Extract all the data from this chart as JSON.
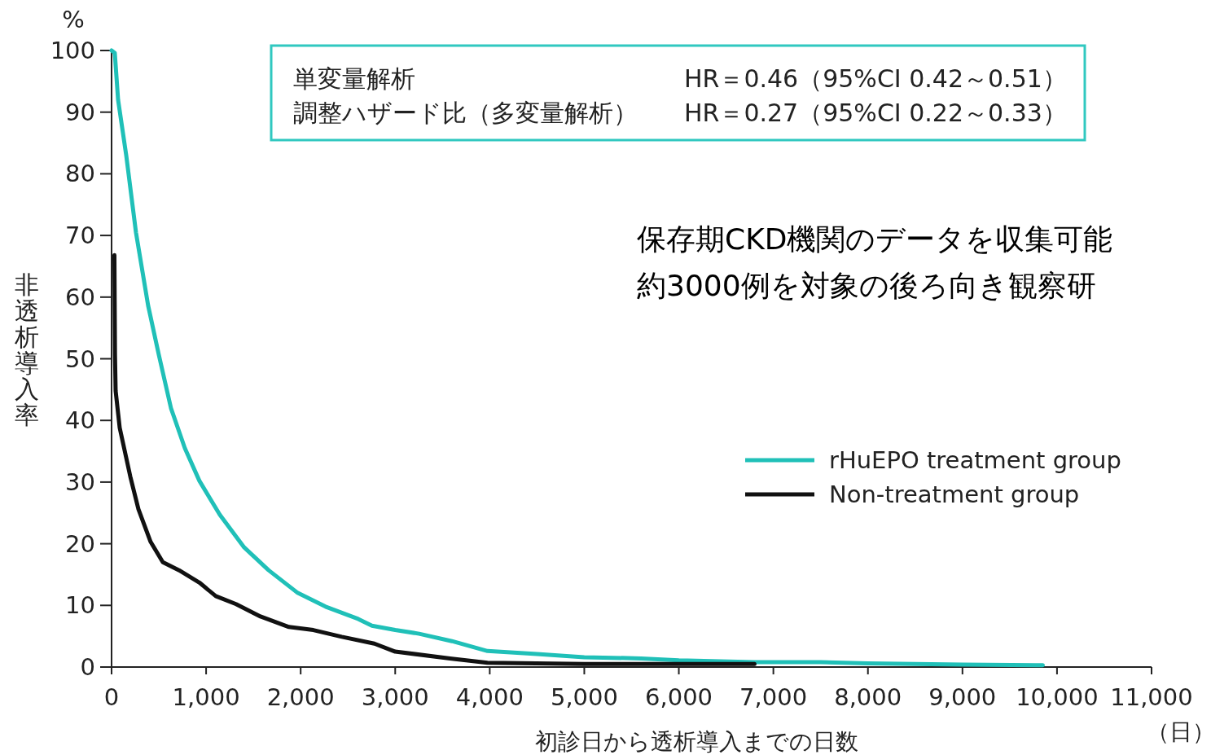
{
  "chart_data": {
    "type": "line",
    "xlabel": "初診日から透析導入までの日数",
    "ylabel": "非透析導入率",
    "annotations": [
      "単変量解析",
      "HR＝0.46（95%CI 0.42～0.51）",
      "調整ハザード比（多変量解析）",
      "HR＝0.27（95%CI 0.22～0.33）",
      "保存期CKD機関のデータを収集可能",
      "約3000例を対象の後ろ向き観察研",
      "%",
      "（日）"
    ],
    "series": [
      {
        "name": "rHuEPO treatment group",
        "color": "#20c0b8",
        "x": [
          0,
          34,
          69,
          155,
          258,
          387,
          499,
          628,
          775,
          929,
          1145,
          1403,
          1661,
          1962,
          2263,
          2608,
          2754,
          3000,
          3253,
          3600,
          3976,
          4500,
          5000,
          5600,
          6000,
          6800,
          7500,
          8000,
          9000,
          9850
        ],
        "values": [
          100,
          99.6,
          92,
          83,
          70.5,
          58.6,
          50.7,
          42,
          35.5,
          30.2,
          24.7,
          19.4,
          15.7,
          12.1,
          9.8,
          7.8,
          6.7,
          6,
          5.4,
          4.2,
          2.6,
          2.1,
          1.6,
          1.4,
          1.1,
          0.8,
          0.8,
          0.6,
          0.4,
          0.3
        ]
      },
      {
        "name": "Non-treatment group",
        "color": "#111111",
        "x": [
          30,
          36,
          43,
          86,
          198,
          284,
          413,
          542,
          714,
          929,
          1102,
          1317,
          1575,
          1876,
          2134,
          2435,
          2780,
          3000,
          3580,
          3976,
          5000,
          6000,
          6800
        ],
        "values": [
          66.8,
          50.7,
          44.8,
          38.8,
          30.9,
          25.6,
          20.3,
          17,
          15.7,
          13.7,
          11.5,
          10.2,
          8.2,
          6.5,
          6,
          4.9,
          3.8,
          2.5,
          1.4,
          0.7,
          0.5,
          0.5,
          0.5
        ]
      }
    ],
    "xlim": [
      0,
      11000
    ],
    "xticks": [
      0,
      {
        "value": 1000,
        "label": "1,000"
      },
      {
        "value": 2000,
        "label": "2,000"
      },
      {
        "value": 3000,
        "label": "3,000"
      },
      {
        "value": 4000,
        "label": "4,000"
      },
      {
        "value": 5000,
        "label": "5,000"
      },
      {
        "value": 6000,
        "label": "6,000"
      },
      {
        "value": 7000,
        "label": "7,000"
      },
      {
        "value": 8000,
        "label": "8,000"
      },
      {
        "value": 9000,
        "label": "9,000"
      },
      {
        "value": 10000,
        "label": "10,000"
      },
      {
        "value": 11000,
        "label": "11,000"
      }
    ],
    "ylim": [
      0,
      100
    ],
    "yticks": [
      0,
      10,
      20,
      30,
      40,
      50,
      60,
      70,
      80,
      90,
      100
    ],
    "legend": "right"
  }
}
